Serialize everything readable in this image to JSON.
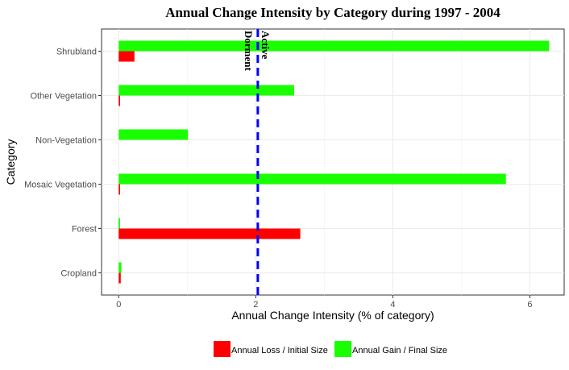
{
  "chart_data": {
    "type": "bar",
    "orientation": "horizontal",
    "title": "Annual Change Intensity by Category during  1997 - 2004",
    "xlabel": "Annual Change Intensity (% of category)",
    "ylabel": "Category",
    "xlim": [
      -0.25,
      6.5
    ],
    "xticks": [
      0,
      2,
      4,
      6
    ],
    "categories": [
      "Shrubland",
      "Other Vegetation",
      "Non-Vegetation",
      "Mosaic Vegetation",
      "Forest",
      "Cropland"
    ],
    "series": [
      {
        "name": "Annual Loss / Initial Size",
        "color": "#ff0000",
        "values": [
          0.23,
          0.02,
          0.0,
          0.02,
          2.65,
          0.03
        ]
      },
      {
        "name": "Annual Gain / Final Size",
        "color": "#1aff00",
        "values": [
          6.28,
          2.56,
          1.01,
          5.65,
          0.02,
          0.04
        ]
      }
    ],
    "reference_line": {
      "value": 2.03,
      "color": "#0000ff",
      "style": "dashed"
    },
    "annotations": [
      "Dorment",
      "Active"
    ],
    "grid": true,
    "legend_position": "bottom"
  }
}
